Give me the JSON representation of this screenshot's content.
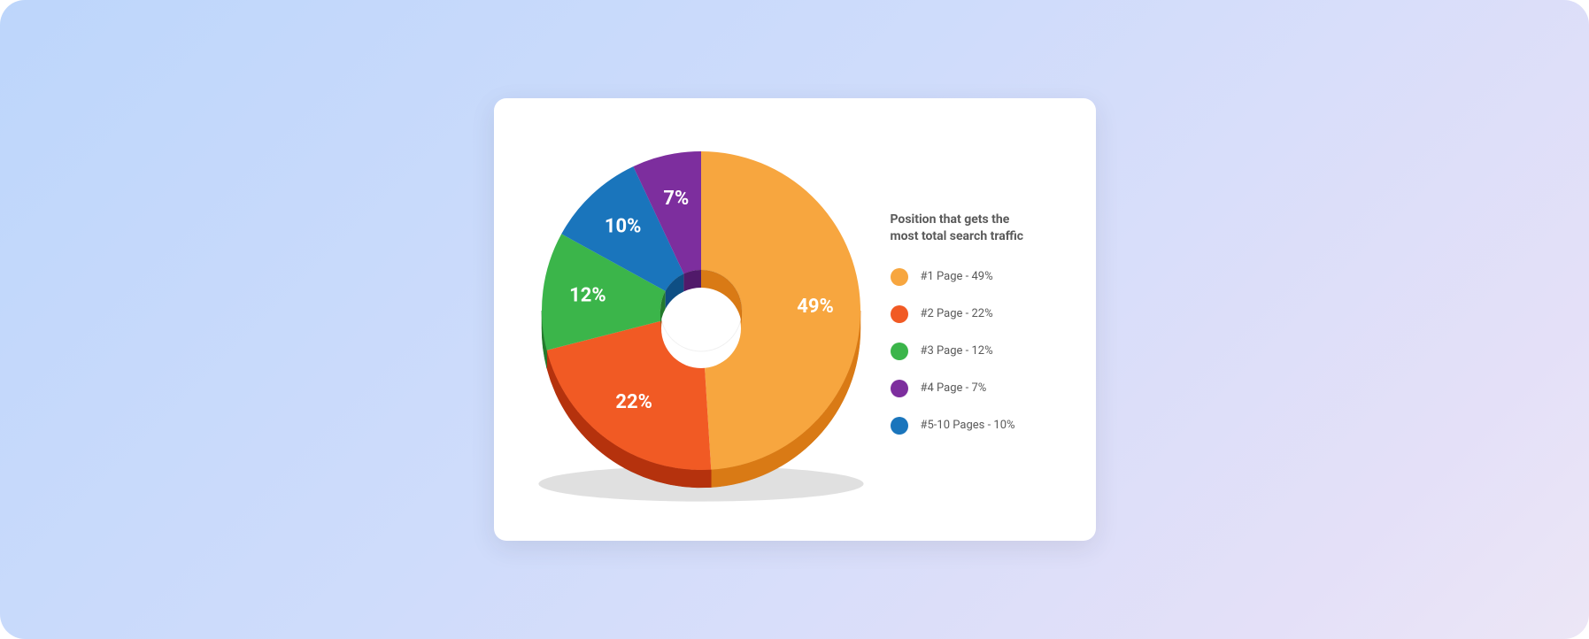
{
  "chart": {
    "type": "donut-3d",
    "title": "Position that gets the\nmost total search traffic",
    "background_color": "#ffffff",
    "card_radius": 14,
    "outer_bg_gradient": [
      "#bdd6fb",
      "#cfdcfb",
      "#e4e0f8",
      "#ece6f6"
    ],
    "radius_outer": 180,
    "radius_inner": 46,
    "depth": 20,
    "label_fontsize": 22,
    "label_color": "#ffffff",
    "legend_title_fontsize": 14,
    "legend_label_fontsize": 13,
    "legend_text_color": "#5a5a5a",
    "slices": [
      {
        "label": "#1 Page - 49%",
        "value": 49,
        "pct_text": "49%",
        "color": "#f7a63f",
        "dark": "#d97a15"
      },
      {
        "label": "#2 Page - 22%",
        "value": 22,
        "pct_text": "22%",
        "color": "#f15a24",
        "dark": "#b5320d"
      },
      {
        "label": "#3 Page - 12%",
        "value": 12,
        "pct_text": "12%",
        "color": "#3bb54a",
        "dark": "#237a2c"
      },
      {
        "label": "#5-10 Pages  - 10%",
        "value": 10,
        "pct_text": "10%",
        "color": "#1a75bc",
        "dark": "#0e4f84"
      },
      {
        "label": "#4 Page - 7%",
        "value": 7,
        "pct_text": "7%",
        "color": "#7d2e9e",
        "dark": "#511a6a"
      }
    ],
    "legend_order": [
      0,
      1,
      2,
      4,
      3
    ]
  }
}
